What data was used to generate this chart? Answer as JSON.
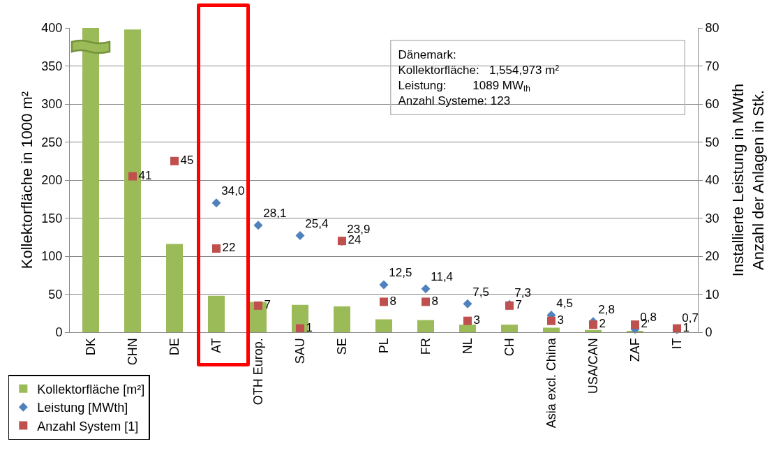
{
  "chart_data": {
    "type": "bar",
    "categories": [
      "DK",
      "CHN",
      "DE",
      "AT",
      "OTH Europ.",
      "SAU",
      "SE",
      "PL",
      "FR",
      "NL",
      "CH",
      "Asia excl. China",
      "USA/CAN",
      "ZAF",
      "IT"
    ],
    "series": [
      {
        "name": "Kollektorfläche [m²]",
        "color": "#9bbb59",
        "values": [
          400,
          398,
          116,
          48,
          40,
          36,
          34,
          17,
          16,
          10,
          10,
          6,
          3,
          1,
          0
        ]
      },
      {
        "name": "Leistung [MWth]",
        "type": "scatter",
        "axis": "y2",
        "marker": "diamond",
        "color": "#4f81bd",
        "values": [
          null,
          null,
          null,
          34.0,
          28.1,
          25.4,
          23.9,
          12.5,
          11.4,
          7.5,
          7.3,
          4.5,
          2.8,
          0.8,
          0.7
        ],
        "value_labels": [
          null,
          null,
          null,
          "34,0",
          "28,1",
          "25,4",
          "23,9",
          "12,5",
          "11,4",
          "7,5",
          "7,3",
          "4,5",
          "2,8",
          "0,8",
          "0,7"
        ]
      },
      {
        "name": "Anzahl System [1]",
        "type": "scatter",
        "axis": "y2",
        "marker": "square",
        "color": "#c0504d",
        "values": [
          null,
          41,
          45,
          22,
          7,
          1,
          24,
          8,
          8,
          3,
          7,
          3,
          2,
          2,
          1
        ],
        "value_labels": [
          null,
          "41",
          "45",
          "22",
          "7",
          "1",
          "24",
          "8",
          "8",
          "3",
          "7",
          "3",
          "2",
          "2",
          "1"
        ]
      }
    ],
    "ylabel": "Kollektorfläche in 1000 m²",
    "y2label": "Installierte Leistung in MWth\nAnzahl der Anlagen in Stk.",
    "ylim": [
      0,
      400
    ],
    "yticks": [
      0,
      50,
      100,
      150,
      200,
      250,
      300,
      350,
      400
    ],
    "y2lim": [
      0,
      80
    ],
    "y2ticks": [
      0,
      10,
      20,
      30,
      40,
      50,
      60,
      70,
      80
    ],
    "grid": "y",
    "legend": "bottom left",
    "annotations": [
      "Dänemark:\nKollektorfläche:   1,554,973 m²\nLeistung:        1089 MW$_{th}$\nAnzahl Systeme: 123"
    ]
  }
}
